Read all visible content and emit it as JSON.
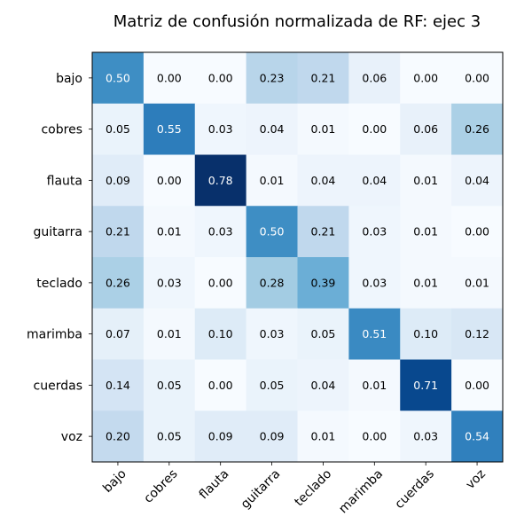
{
  "chart_data": {
    "type": "heatmap",
    "title": "Matriz de confusión normalizada de RF: ejec 3",
    "row_labels": [
      "bajo",
      "cobres",
      "flauta",
      "guitarra",
      "teclado",
      "marimba",
      "cuerdas",
      "voz"
    ],
    "col_labels": [
      "bajo",
      "cobres",
      "flauta",
      "guitarra",
      "teclado",
      "marimba",
      "cuerdas",
      "voz"
    ],
    "values": [
      [
        0.5,
        0.0,
        0.0,
        0.23,
        0.21,
        0.06,
        0.0,
        0.0
      ],
      [
        0.05,
        0.55,
        0.03,
        0.04,
        0.01,
        0.0,
        0.06,
        0.26
      ],
      [
        0.09,
        0.0,
        0.78,
        0.01,
        0.04,
        0.04,
        0.01,
        0.04
      ],
      [
        0.21,
        0.01,
        0.03,
        0.5,
        0.21,
        0.03,
        0.01,
        0.0
      ],
      [
        0.26,
        0.03,
        0.0,
        0.28,
        0.39,
        0.03,
        0.01,
        0.01
      ],
      [
        0.07,
        0.01,
        0.1,
        0.03,
        0.05,
        0.51,
        0.1,
        0.12
      ],
      [
        0.14,
        0.05,
        0.0,
        0.05,
        0.04,
        0.01,
        0.71,
        0.0
      ],
      [
        0.2,
        0.05,
        0.09,
        0.09,
        0.01,
        0.0,
        0.03,
        0.54
      ]
    ],
    "value_format_decimals": 2,
    "colormap": "Blues",
    "vmin": 0.0,
    "vmax": 0.78,
    "xlabel": "",
    "ylabel": ""
  }
}
